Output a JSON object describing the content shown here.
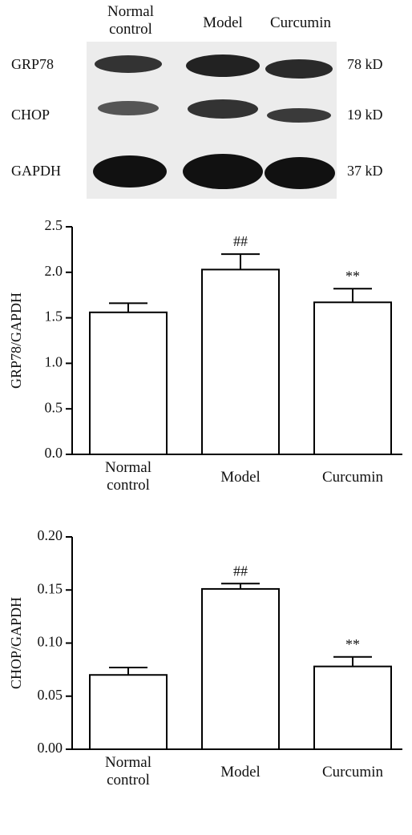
{
  "blot": {
    "lanes": [
      "Normal control",
      "Model",
      "Curcumin"
    ],
    "proteins": [
      {
        "name": "GRP78",
        "size": "78 kD"
      },
      {
        "name": "CHOP",
        "size": "19 kD"
      },
      {
        "name": "GAPDH",
        "size": "37 kD"
      }
    ]
  },
  "chart_data": [
    {
      "type": "bar",
      "ylabel": "GRP78/GAPDH",
      "categories": [
        "Normal control",
        "Model",
        "Curcumin"
      ],
      "values": [
        1.56,
        2.03,
        1.67
      ],
      "errors": [
        0.1,
        0.17,
        0.15
      ],
      "annotations": [
        null,
        "##",
        "**"
      ],
      "color": "#ffffff",
      "ylim": [
        0,
        2.5
      ],
      "yticks": [
        {
          "value": 0,
          "label": "0.0"
        },
        0.5,
        {
          "value": 1,
          "label": "1.0"
        },
        1.5,
        {
          "value": 2,
          "label": "2.0"
        },
        2.5
      ]
    },
    {
      "type": "bar",
      "ylabel": "CHOP/GAPDH",
      "categories": [
        "Normal control",
        "Model",
        "Curcumin"
      ],
      "values": [
        0.07,
        0.151,
        0.078
      ],
      "errors": [
        0.007,
        0.005,
        0.009
      ],
      "annotations": [
        null,
        "##",
        "**"
      ],
      "color": "#ffffff",
      "ylim": [
        0,
        0.2
      ],
      "yticks": [
        {
          "value": 0,
          "label": "0.00"
        },
        0.05,
        {
          "value": 0.1,
          "label": "0.10"
        },
        0.15,
        {
          "value": 0.2,
          "label": "0.20"
        }
      ]
    }
  ]
}
